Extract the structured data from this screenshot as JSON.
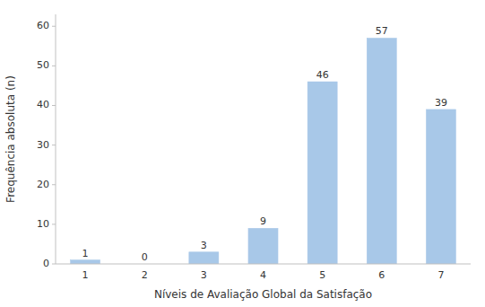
{
  "chart_data": {
    "type": "bar",
    "categories": [
      "1",
      "2",
      "3",
      "4",
      "5",
      "6",
      "7"
    ],
    "values": [
      1,
      0,
      3,
      9,
      46,
      57,
      39
    ],
    "color": "#a8c8e8",
    "xlabel": "Níveis de Avaliação Global da Satisfação",
    "ylabel": "Frequência absoluta (n)",
    "ylim": [
      0,
      63
    ],
    "yticks": [
      0,
      10,
      20,
      30,
      40,
      50,
      60
    ],
    "grid": false,
    "data_labels": true
  }
}
